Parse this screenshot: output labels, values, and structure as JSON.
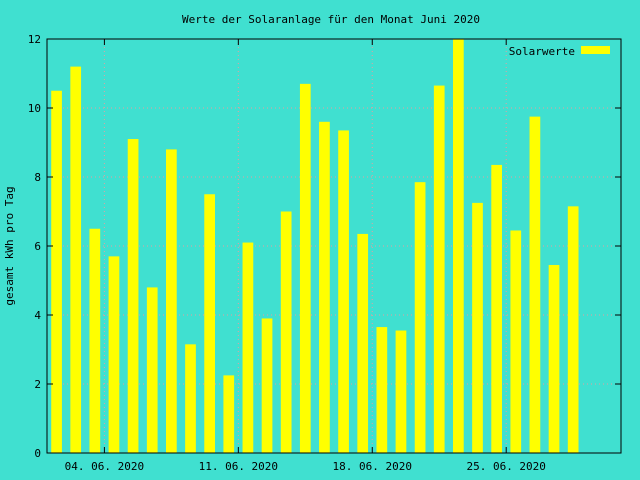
{
  "chart_data": {
    "type": "bar",
    "title": "Werte der Solaranlage für den Monat Juni 2020",
    "xlabel": "",
    "ylabel": "gesamt kWh pro Tag",
    "ylim": [
      0,
      12
    ],
    "yticks": [
      0,
      2,
      4,
      6,
      8,
      10,
      12
    ],
    "x_start": "2020-06-01",
    "x_end": "2020-07-01",
    "xticks": [
      {
        "date": "2020-06-04",
        "label": "04. 06. 2020"
      },
      {
        "date": "2020-06-11",
        "label": "11. 06. 2020"
      },
      {
        "date": "2020-06-18",
        "label": "18. 06. 2020"
      },
      {
        "date": "2020-06-25",
        "label": "25. 06. 2020"
      }
    ],
    "grid": true,
    "legend_position": "top-right",
    "colors": {
      "background": "#40e0d0",
      "bars": "#ffff00",
      "grid": "#e0a0a0",
      "axis": "#000000"
    },
    "series": [
      {
        "name": "Solarwerte",
        "x": [
          "2020-06-01",
          "2020-06-02",
          "2020-06-03",
          "2020-06-04",
          "2020-06-05",
          "2020-06-06",
          "2020-06-07",
          "2020-06-08",
          "2020-06-09",
          "2020-06-10",
          "2020-06-11",
          "2020-06-12",
          "2020-06-13",
          "2020-06-14",
          "2020-06-15",
          "2020-06-16",
          "2020-06-17",
          "2020-06-18",
          "2020-06-19",
          "2020-06-20",
          "2020-06-21",
          "2020-06-22",
          "2020-06-23",
          "2020-06-24",
          "2020-06-25",
          "2020-06-26",
          "2020-06-27",
          "2020-06-28",
          "2020-06-29",
          "2020-06-30"
        ],
        "values": [
          10.5,
          11.2,
          6.5,
          5.7,
          9.1,
          4.8,
          8.8,
          3.15,
          7.5,
          2.25,
          6.1,
          3.9,
          7.0,
          10.7,
          9.6,
          9.35,
          6.35,
          3.65,
          3.55,
          7.85,
          10.65,
          12.0,
          7.25,
          8.35,
          6.45,
          9.75,
          5.45,
          7.15,
          0,
          0
        ]
      }
    ]
  }
}
